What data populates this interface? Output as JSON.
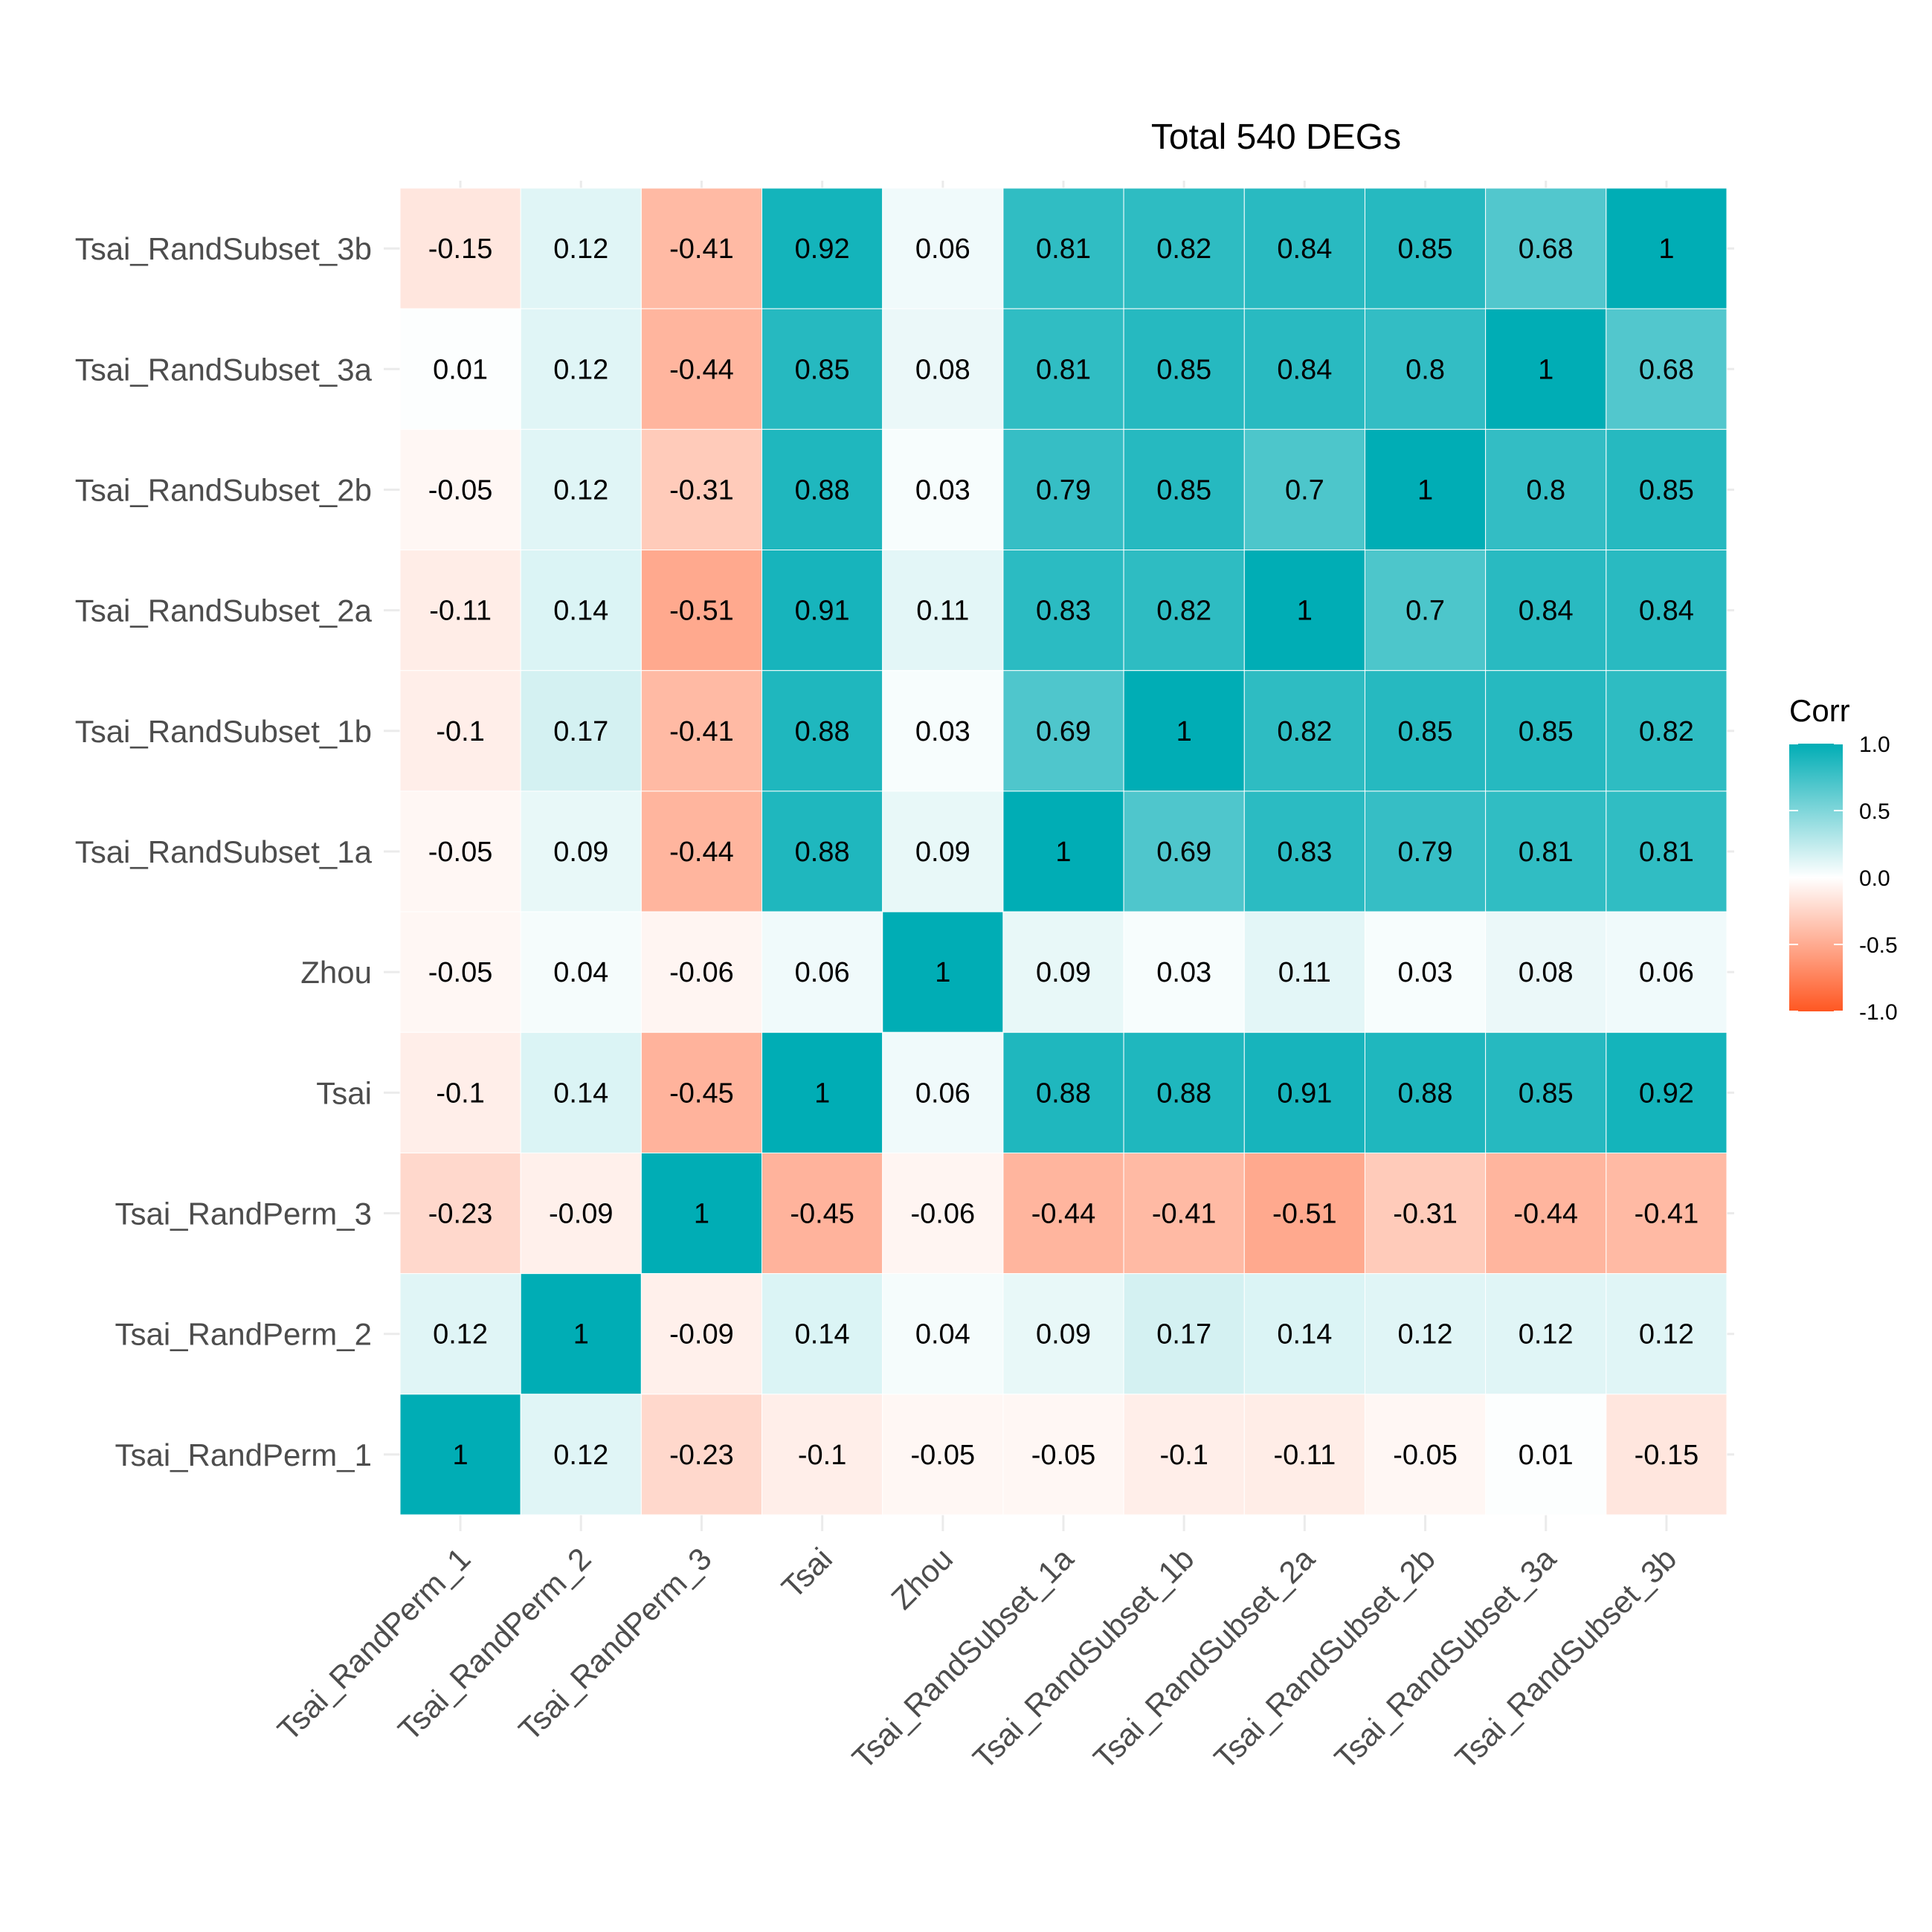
{
  "chart_data": {
    "type": "heatmap",
    "title": "Total 540 DEGs",
    "x_labels": [
      "Tsai_RandPerm_1",
      "Tsai_RandPerm_2",
      "Tsai_RandPerm_3",
      "Tsai",
      "Zhou",
      "Tsai_RandSubset_1a",
      "Tsai_RandSubset_1b",
      "Tsai_RandSubset_2a",
      "Tsai_RandSubset_2b",
      "Tsai_RandSubset_3a",
      "Tsai_RandSubset_3b"
    ],
    "y_labels_top_to_bottom": [
      "Tsai_RandSubset_3b",
      "Tsai_RandSubset_3a",
      "Tsai_RandSubset_2b",
      "Tsai_RandSubset_2a",
      "Tsai_RandSubset_1b",
      "Tsai_RandSubset_1a",
      "Zhou",
      "Tsai",
      "Tsai_RandPerm_3",
      "Tsai_RandPerm_2",
      "Tsai_RandPerm_1"
    ],
    "values_top_to_bottom": [
      [
        "-0.15",
        "0.12",
        "-0.41",
        "0.92",
        "0.06",
        "0.81",
        "0.82",
        "0.84",
        "0.85",
        "0.68",
        "1"
      ],
      [
        "0.01",
        "0.12",
        "-0.44",
        "0.85",
        "0.08",
        "0.81",
        "0.85",
        "0.84",
        "0.8",
        "1",
        "0.68"
      ],
      [
        "-0.05",
        "0.12",
        "-0.31",
        "0.88",
        "0.03",
        "0.79",
        "0.85",
        "0.7",
        "1",
        "0.8",
        "0.85"
      ],
      [
        "-0.11",
        "0.14",
        "-0.51",
        "0.91",
        "0.11",
        "0.83",
        "0.82",
        "1",
        "0.7",
        "0.84",
        "0.84"
      ],
      [
        "-0.1",
        "0.17",
        "-0.41",
        "0.88",
        "0.03",
        "0.69",
        "1",
        "0.82",
        "0.85",
        "0.85",
        "0.82"
      ],
      [
        "-0.05",
        "0.09",
        "-0.44",
        "0.88",
        "0.09",
        "1",
        "0.69",
        "0.83",
        "0.79",
        "0.81",
        "0.81"
      ],
      [
        "-0.05",
        "0.04",
        "-0.06",
        "0.06",
        "1",
        "0.09",
        "0.03",
        "0.11",
        "0.03",
        "0.08",
        "0.06"
      ],
      [
        "-0.1",
        "0.14",
        "-0.45",
        "1",
        "0.06",
        "0.88",
        "0.88",
        "0.91",
        "0.88",
        "0.85",
        "0.92"
      ],
      [
        "-0.23",
        "-0.09",
        "1",
        "-0.45",
        "-0.06",
        "-0.44",
        "-0.41",
        "-0.51",
        "-0.31",
        "-0.44",
        "-0.41"
      ],
      [
        "0.12",
        "1",
        "-0.09",
        "0.14",
        "0.04",
        "0.09",
        "0.17",
        "0.14",
        "0.12",
        "0.12",
        "0.12"
      ],
      [
        "1",
        "0.12",
        "-0.23",
        "-0.1",
        "-0.05",
        "-0.05",
        "-0.1",
        "-0.11",
        "-0.05",
        "0.01",
        "-0.15"
      ]
    ],
    "legend": {
      "title": "Corr",
      "ticks": [
        "1.0",
        "0.5",
        "0.0",
        "-0.5",
        "-1.0"
      ],
      "range": [
        -1,
        1
      ],
      "placement": "right"
    },
    "colors": {
      "low": "#ff5722",
      "mid": "#ffffff",
      "high": "#00adb5"
    },
    "grid": true
  }
}
